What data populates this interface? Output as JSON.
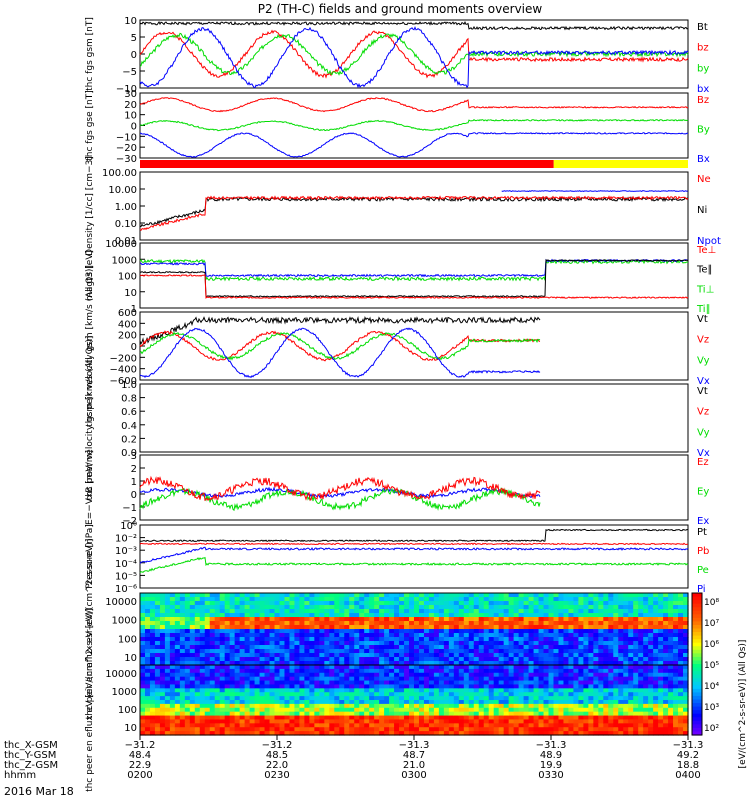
{
  "title": "P2 (TH-C) fields and ground moments overview",
  "date_label": "2016 Mar 18",
  "colorbar_label": "[eV/(cm^2-s-sr-eV)] (All Qs)]",
  "colors": {
    "black": "#000000",
    "red": "#ff0000",
    "green": "#00dd00",
    "blue": "#0000ff",
    "bar_red": "#ff0000",
    "bar_yellow": "#ffff00",
    "colorbar": [
      "#ff00ff",
      "#0000ff",
      "#00ffff",
      "#00ff00",
      "#ffff00",
      "#ff0000",
      "#ffffff"
    ]
  },
  "time_axis": {
    "row_labels": [
      "thc_X-GSM",
      "thc_Y-GSM",
      "thc_Z-GSM",
      "hhmm"
    ],
    "ticks": [
      {
        "x_gsm": "−31.2",
        "y_gsm": "48.4",
        "z_gsm": "22.9",
        "hhmm": "0200"
      },
      {
        "x_gsm": "−31.2",
        "y_gsm": "48.5",
        "z_gsm": "22.0",
        "hhmm": "0230"
      },
      {
        "x_gsm": "−31.3",
        "y_gsm": "48.7",
        "z_gsm": "21.0",
        "hhmm": "0300"
      },
      {
        "x_gsm": "−31.3",
        "y_gsm": "48.9",
        "z_gsm": "19.9",
        "hhmm": "0330"
      },
      {
        "x_gsm": "−31.3",
        "y_gsm": "49.2",
        "z_gsm": "18.8",
        "hhmm": "0400"
      }
    ]
  },
  "chart_data": [
    {
      "type": "line",
      "id": "fgs_gsm",
      "ylabel": "thc fgs gsm [nT]",
      "ylim": [
        -10,
        10
      ],
      "yticks": [
        "10",
        "5",
        "0",
        "−5",
        "−10"
      ],
      "series": [
        {
          "name": "Bt",
          "color": "#000000"
        },
        {
          "name": "bz",
          "color": "#ff0000"
        },
        {
          "name": "by",
          "color": "#00dd00"
        },
        {
          "name": "bx",
          "color": "#0000ff"
        }
      ]
    },
    {
      "type": "line",
      "id": "fgs_gse",
      "ylabel": "thc fgs gse [nT]",
      "ylim": [
        -30,
        30
      ],
      "yticks": [
        "30",
        "20",
        "10",
        "0",
        "−10",
        "−20",
        "−30"
      ],
      "series": [
        {
          "name": "Bz",
          "color": "#ff0000"
        },
        {
          "name": "By",
          "color": "#00dd00"
        },
        {
          "name": "Bx",
          "color": "#0000ff"
        }
      ]
    },
    {
      "type": "bar",
      "id": "mode_bar",
      "segments": [
        {
          "color": "#ff0000",
          "from": "0200",
          "to": "0320"
        },
        {
          "color": "#ffff00",
          "from": "0320",
          "to": "0400"
        }
      ]
    },
    {
      "type": "line",
      "id": "density",
      "ylabel": "Density [1/cc] [cm−3]",
      "scale": "log",
      "ylim": [
        0.01,
        100
      ],
      "yticks": [
        "100.00",
        "10.00",
        "1.00",
        "0.10",
        "0.01"
      ],
      "series": [
        {
          "name": "Ne",
          "color": "#ff0000"
        },
        {
          "name": "Ni",
          "color": "#000000"
        },
        {
          "name": "Npot",
          "color": "#0000ff"
        }
      ]
    },
    {
      "type": "line",
      "id": "temperature",
      "ylabel": "magt3 [eV]",
      "scale": "log",
      "ylim": [
        1,
        10000
      ],
      "yticks": [
        "10000",
        "1000",
        "100",
        "10",
        "1"
      ],
      "series": [
        {
          "name": "Te⊥",
          "color": "#ff0000"
        },
        {
          "name": "Te∥",
          "color": "#000000"
        },
        {
          "name": "Ti⊥",
          "color": "#00dd00"
        },
        {
          "name": "Ti∥",
          "color": "#00dd00"
        }
      ]
    },
    {
      "type": "line",
      "id": "peir_velocity",
      "ylabel": "thc peir velocity gsm [km/s (All Qs)]",
      "ylim": [
        -600,
        600
      ],
      "yticks": [
        "600",
        "400",
        "200",
        "0",
        "−200",
        "−400",
        "−600"
      ],
      "series": [
        {
          "name": "Vt",
          "color": "#000000"
        },
        {
          "name": "Vz",
          "color": "#ff0000"
        },
        {
          "name": "Vy",
          "color": "#00dd00"
        },
        {
          "name": "Vx",
          "color": "#0000ff"
        }
      ]
    },
    {
      "type": "line",
      "id": "peer_velocity",
      "ylabel": "thc peer velocity gsm [km/s (All Qs)]",
      "ylim": [
        0,
        1
      ],
      "yticks": [
        "1.0",
        "0.8",
        "0.6",
        "0.4",
        "0.2",
        "0.0"
      ],
      "series": [
        {
          "name": "Vt",
          "color": "#000000"
        },
        {
          "name": "Vz",
          "color": "#ff0000"
        },
        {
          "name": "Vy",
          "color": "#00dd00"
        },
        {
          "name": "Vx",
          "color": "#0000ff"
        }
      ]
    },
    {
      "type": "line",
      "id": "efield",
      "ylabel": "E=−VxB [mV/m]",
      "ylim": [
        -2,
        3
      ],
      "yticks": [
        "3",
        "2",
        "1",
        "0",
        "−1",
        "−2"
      ],
      "series": [
        {
          "name": "Ez",
          "color": "#ff0000"
        },
        {
          "name": "Ey",
          "color": "#00dd00"
        },
        {
          "name": "Ex",
          "color": "#0000ff"
        }
      ]
    },
    {
      "type": "line",
      "id": "pressure",
      "ylabel": "Pressure [nPa]",
      "scale": "log",
      "ylim": [
        1e-06,
        1
      ],
      "yticks": [
        "10⁰",
        "10⁻²",
        "10⁻³",
        "10⁻⁴",
        "10⁻⁵",
        "10⁻⁶"
      ],
      "series": [
        {
          "name": "Pt",
          "color": "#000000"
        },
        {
          "name": "Pb",
          "color": "#ff0000"
        },
        {
          "name": "Pe",
          "color": "#00dd00"
        },
        {
          "name": "Pi",
          "color": "#0000ff"
        }
      ]
    },
    {
      "type": "heatmap",
      "id": "peir_spec",
      "ylabel": "thc peir en eflux eV [eV/(cm^2-s-sr-eV)]",
      "scale": "log",
      "yticks": [
        "10000",
        "1000",
        "100",
        "10"
      ]
    },
    {
      "type": "heatmap",
      "id": "peer_spec",
      "ylabel": "thc peer en eflux eV [eV/(cm^2-s-sr-eV)]",
      "scale": "log",
      "yticks": [
        "10000",
        "1000",
        "100",
        "10"
      ],
      "colorbar_ticks": [
        "10⁸",
        "10⁷",
        "10⁶",
        "10⁵",
        "10⁴",
        "10³",
        "10²"
      ]
    }
  ]
}
